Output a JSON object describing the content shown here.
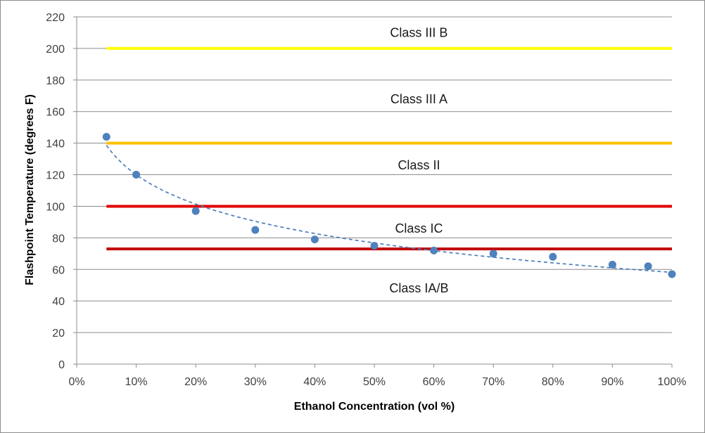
{
  "chart_data": {
    "type": "scatter",
    "title": "",
    "xlabel": "Ethanol Concentration (vol %)",
    "ylabel": "Flashpoint Temperature (degrees F)",
    "xlim": [
      0,
      100
    ],
    "ylim": [
      0,
      220
    ],
    "x_ticks": [
      "0%",
      "10%",
      "20%",
      "30%",
      "40%",
      "50%",
      "60%",
      "70%",
      "80%",
      "90%",
      "100%"
    ],
    "y_ticks": [
      "0",
      "20",
      "40",
      "60",
      "80",
      "100",
      "120",
      "140",
      "160",
      "180",
      "200",
      "220"
    ],
    "grid": "horizontal",
    "legend": "none",
    "series": [
      {
        "color": "#4f81bd",
        "x": [
          5,
          10,
          20,
          30,
          40,
          50,
          60,
          70,
          80,
          90,
          96,
          100
        ],
        "y": [
          144,
          120,
          97,
          85,
          79,
          75,
          72,
          70,
          68,
          63,
          62,
          57
        ],
        "trendline": "logarithmic, dashed"
      }
    ],
    "threshold_lines": [
      {
        "y": 200,
        "x_start": 5,
        "x_end": 100,
        "color": "#ffff00"
      },
      {
        "y": 140,
        "x_start": 5,
        "x_end": 100,
        "color": "#ffc000"
      },
      {
        "y": 100,
        "x_start": 5,
        "x_end": 100,
        "color": "#e00000"
      },
      {
        "y": 73,
        "x_start": 5,
        "x_end": 100,
        "color": "#c00000"
      }
    ],
    "band_labels": [
      {
        "text": "Class III B",
        "x": 57.5,
        "y": 210
      },
      {
        "text": "Class III A",
        "x": 57.5,
        "y": 168
      },
      {
        "text": "Class II",
        "x": 57.5,
        "y": 126
      },
      {
        "text": "Class IC",
        "x": 57.5,
        "y": 86
      },
      {
        "text": "Class IA/B",
        "x": 57.5,
        "y": 48
      }
    ]
  }
}
